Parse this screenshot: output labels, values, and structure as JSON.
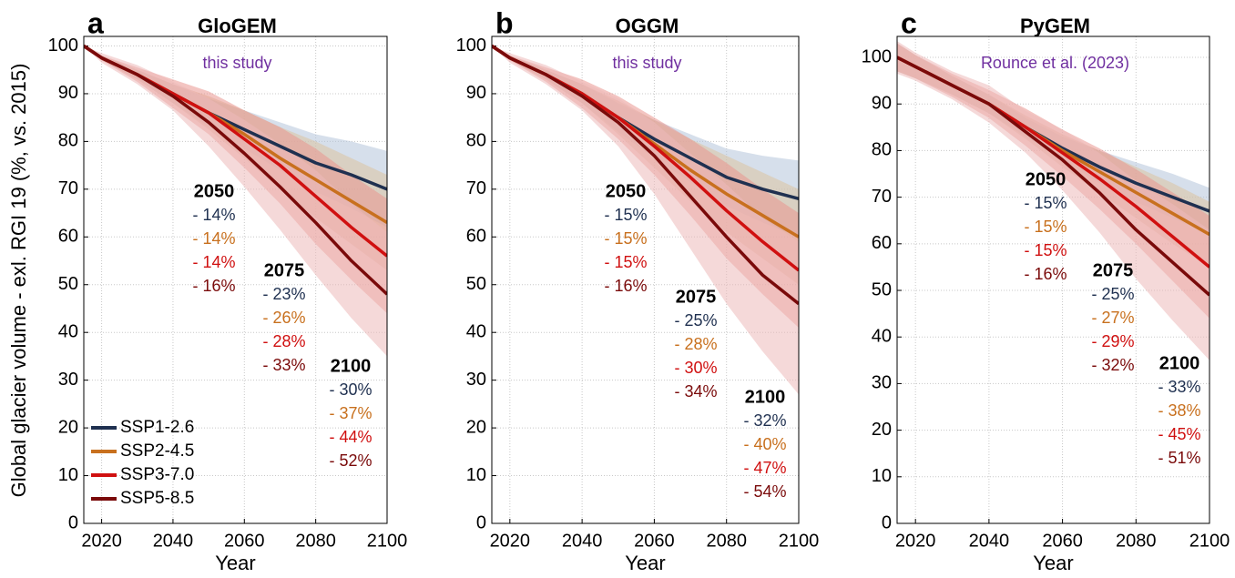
{
  "chart_data": [
    {
      "type": "line",
      "panel": "a",
      "title": "GloGEM",
      "subtitle": "this study",
      "subtitle_color": "#7030a0",
      "ylabel": "Global glacier volume - exl. RGI 19 (%, vs. 2015)",
      "xlabel": "Year",
      "x": [
        2015,
        2020,
        2030,
        2040,
        2050,
        2060,
        2070,
        2080,
        2090,
        2100
      ],
      "xlim": [
        2015,
        2100
      ],
      "xticks": [
        2020,
        2040,
        2060,
        2080,
        2100
      ],
      "ylim": [
        0,
        102
      ],
      "yticks": [
        0,
        10,
        20,
        30,
        40,
        50,
        60,
        70,
        80,
        90,
        100
      ],
      "grid": true,
      "legend": "lower left",
      "series": [
        {
          "name": "SSP1-2.6",
          "color": "#1f3050",
          "band_color": "#b5c4da",
          "values": [
            100,
            97.5,
            94,
            90,
            86,
            82.5,
            79,
            75.5,
            73,
            70
          ],
          "lower": [
            100,
            97,
            93,
            88,
            83,
            78.5,
            74,
            69.5,
            66,
            62
          ],
          "upper": [
            100,
            98,
            95,
            92,
            89,
            86.5,
            84,
            81.5,
            80,
            78
          ]
        },
        {
          "name": "SSP2-4.5",
          "color": "#c8701e",
          "band_color": "#dcc3a0",
          "values": [
            100,
            97.5,
            94,
            90,
            86,
            81.5,
            76.5,
            72,
            67.5,
            63
          ],
          "lower": [
            100,
            97,
            93,
            88,
            82.5,
            76.5,
            70,
            64,
            58.5,
            53
          ],
          "upper": [
            100,
            98,
            95,
            92,
            89.5,
            86.5,
            83,
            80,
            76.5,
            73
          ]
        },
        {
          "name": "SSP3-7.0",
          "color": "#d01010",
          "band_color": "#e9968f",
          "values": [
            100,
            97.5,
            94,
            90,
            86,
            80.5,
            75,
            68.5,
            62,
            56
          ],
          "lower": [
            100,
            97,
            92.5,
            87,
            81.5,
            74.5,
            67,
            58.5,
            51,
            44
          ],
          "upper": [
            100,
            98,
            95.5,
            93,
            90.5,
            86.5,
            83,
            78.5,
            73,
            68
          ]
        },
        {
          "name": "SSP5-8.5",
          "color": "#7a0a0a",
          "band_color": "#ecb9b9",
          "values": [
            100,
            97.5,
            94,
            89.5,
            84,
            77.5,
            70.5,
            63,
            55,
            48
          ],
          "lower": [
            100,
            96.5,
            92,
            86.5,
            79,
            70.5,
            61.5,
            52,
            43,
            35
          ],
          "upper": [
            100,
            98.5,
            96,
            92.5,
            89,
            84.5,
            79.5,
            74,
            67,
            61
          ]
        }
      ],
      "annotations": [
        {
          "year": "2050",
          "labels": [
            "- 14%",
            "- 14%",
            "- 14%",
            "- 16%"
          ]
        },
        {
          "year": "2075",
          "labels": [
            "- 23%",
            "- 26%",
            "- 28%",
            "- 33%"
          ]
        },
        {
          "year": "2100",
          "labels": [
            "- 30%",
            "- 37%",
            "- 44%",
            "- 52%"
          ]
        }
      ]
    },
    {
      "type": "line",
      "panel": "b",
      "title": "OGGM",
      "subtitle": "this study",
      "subtitle_color": "#7030a0",
      "xlabel": "Year",
      "x": [
        2015,
        2020,
        2030,
        2040,
        2050,
        2060,
        2070,
        2080,
        2090,
        2100
      ],
      "xlim": [
        2015,
        2100
      ],
      "xticks": [
        2020,
        2040,
        2060,
        2080,
        2100
      ],
      "ylim": [
        0,
        102
      ],
      "yticks": [
        0,
        10,
        20,
        30,
        40,
        50,
        60,
        70,
        80,
        90,
        100
      ],
      "grid": true,
      "series": [
        {
          "color": "#1f3050",
          "band_color": "#b5c4da",
          "values": [
            100,
            97.5,
            94,
            90,
            85,
            80.5,
            76.5,
            72.5,
            70,
            68
          ],
          "lower": [
            100,
            97,
            93,
            88,
            82,
            76.5,
            71.5,
            66.5,
            63,
            60
          ],
          "upper": [
            100,
            98,
            95,
            92,
            88,
            84.5,
            81.5,
            78.5,
            77,
            76
          ]
        },
        {
          "color": "#c8701e",
          "band_color": "#dcc3a0",
          "values": [
            100,
            97.5,
            94,
            90,
            85,
            79.5,
            74,
            69,
            64.5,
            60
          ],
          "lower": [
            100,
            97,
            93,
            88,
            81.5,
            74.5,
            67.5,
            61,
            55.5,
            50
          ],
          "upper": [
            100,
            98,
            95,
            92,
            88.5,
            84.5,
            80.5,
            77,
            73.5,
            70
          ]
        },
        {
          "color": "#d01010",
          "band_color": "#e9968f",
          "values": [
            100,
            97.5,
            94,
            90,
            85,
            79,
            72.5,
            65.5,
            59,
            53
          ],
          "lower": [
            100,
            97,
            92.5,
            87,
            80.5,
            73,
            64.5,
            55.5,
            48,
            41
          ],
          "upper": [
            100,
            98,
            95.5,
            93,
            89.5,
            85,
            80.5,
            75.5,
            70,
            65
          ]
        },
        {
          "color": "#7a0a0a",
          "band_color": "#ecb9b9",
          "values": [
            100,
            97.5,
            94,
            89.5,
            84,
            77,
            68.5,
            60,
            52,
            46
          ],
          "lower": [
            100,
            96.5,
            92,
            86.5,
            79,
            69,
            57.5,
            46,
            36,
            27
          ],
          "upper": [
            100,
            98.5,
            96,
            92.5,
            89,
            84,
            77.5,
            71,
            64,
            59
          ]
        }
      ],
      "annotations": [
        {
          "year": "2050",
          "labels": [
            "- 15%",
            "- 15%",
            "- 15%",
            "- 16%"
          ]
        },
        {
          "year": "2075",
          "labels": [
            "- 25%",
            "- 28%",
            "- 30%",
            "- 34%"
          ]
        },
        {
          "year": "2100",
          "labels": [
            "- 32%",
            "- 40%",
            "- 47%",
            "- 54%"
          ]
        }
      ]
    },
    {
      "type": "line",
      "panel": "c",
      "title": "PyGEM",
      "subtitle": "Rounce et al. (2023)",
      "subtitle_color": "#7030a0",
      "xlabel": "Year",
      "x": [
        2015,
        2020,
        2030,
        2040,
        2050,
        2060,
        2070,
        2080,
        2090,
        2100
      ],
      "xlim": [
        2015,
        2100
      ],
      "xticks": [
        2020,
        2040,
        2060,
        2080,
        2100
      ],
      "ylim": [
        0,
        104.5
      ],
      "yticks": [
        0,
        10,
        20,
        30,
        40,
        50,
        60,
        70,
        80,
        90,
        100
      ],
      "grid": true,
      "series": [
        {
          "color": "#1f3050",
          "band_color": "#b5c4da",
          "values": [
            100,
            98,
            94,
            90,
            85,
            80.5,
            76.5,
            73,
            70,
            67
          ],
          "lower": [
            97,
            95.5,
            92,
            88,
            83,
            78,
            73,
            69,
            65.5,
            62
          ],
          "upper": [
            103,
            100.5,
            96,
            92,
            87,
            83,
            80,
            77.5,
            75,
            72
          ]
        },
        {
          "color": "#c8701e",
          "band_color": "#dcc3a0",
          "values": [
            100,
            98,
            94,
            90,
            85,
            80,
            75.5,
            71,
            66.5,
            62
          ],
          "lower": [
            97,
            95.5,
            92,
            88,
            82.5,
            76.5,
            71,
            65.5,
            60,
            55
          ],
          "upper": [
            103,
            100.5,
            96,
            92,
            87.5,
            83.5,
            80,
            76.5,
            73,
            69
          ]
        },
        {
          "color": "#d01010",
          "band_color": "#e9968f",
          "values": [
            100,
            98,
            94,
            90,
            85,
            79.5,
            74,
            68,
            61.5,
            55
          ],
          "lower": [
            97,
            95.5,
            91.5,
            87,
            81,
            74.5,
            67.5,
            60,
            52,
            44
          ],
          "upper": [
            103,
            100.5,
            96.5,
            93,
            89,
            84.5,
            80.5,
            76,
            71,
            66
          ]
        },
        {
          "color": "#7a0a0a",
          "band_color": "#ecb9b9",
          "values": [
            100,
            98,
            94,
            90,
            84,
            78,
            71,
            63,
            56,
            49
          ],
          "lower": [
            96.5,
            95,
            91,
            86,
            79.5,
            71.5,
            62.5,
            52.5,
            43.5,
            35
          ],
          "upper": [
            103.5,
            101,
            97,
            94,
            88.5,
            84.5,
            79.5,
            73.5,
            68.5,
            63
          ]
        }
      ],
      "annotations": [
        {
          "year": "2050",
          "labels": [
            "- 15%",
            "- 15%",
            "- 15%",
            "- 16%"
          ]
        },
        {
          "year": "2075",
          "labels": [
            "- 25%",
            "- 27%",
            "- 29%",
            "- 32%"
          ]
        },
        {
          "year": "2100",
          "labels": [
            "- 33%",
            "- 38%",
            "- 45%",
            "- 51%"
          ]
        }
      ]
    }
  ]
}
